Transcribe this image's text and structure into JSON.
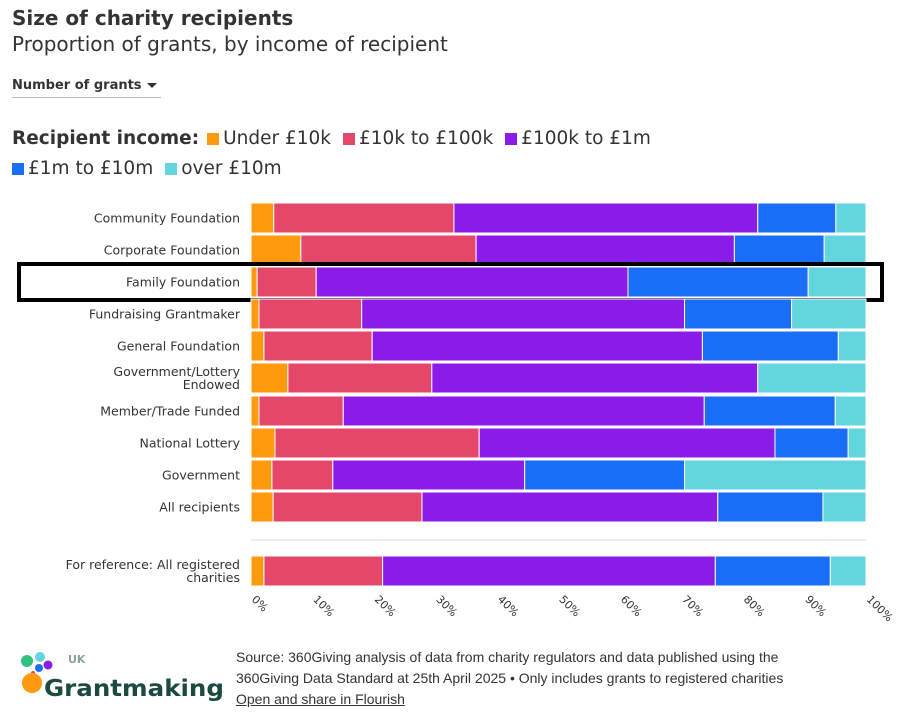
{
  "header": {
    "title": "Size of charity recipients",
    "subtitle": "Proportion of grants, by income of recipient"
  },
  "controls": {
    "dropdown_value": "Number of grants"
  },
  "legend": {
    "title": "Recipient income:"
  },
  "chart_data": {
    "type": "bar",
    "orientation": "horizontal",
    "stacked": "percent",
    "categories": [
      "Community Foundation",
      "Corporate Foundation",
      "Family Foundation",
      "Fundraising Grantmaker",
      "General Foundation",
      "Government/Lottery Endowed",
      "Member/Trade Funded",
      "National Lottery",
      "Government",
      "All recipients",
      "For reference: All registered charities"
    ],
    "highlighted": "Family Foundation",
    "series": [
      {
        "name": "Under £10k",
        "color": "#ff9a0e",
        "values": [
          3.7,
          8.1,
          1.0,
          1.3,
          2.1,
          6.0,
          1.3,
          3.9,
          3.4,
          3.6,
          2.1
        ]
      },
      {
        "name": "£10k to £100k",
        "color": "#e5476a",
        "values": [
          29.3,
          28.5,
          9.6,
          16.7,
          17.6,
          23.4,
          13.7,
          33.2,
          9.9,
          24.2,
          19.3
        ]
      },
      {
        "name": "£100k to £1m",
        "color": "#8a1be9",
        "values": [
          49.4,
          42.0,
          50.7,
          52.5,
          53.7,
          53.0,
          58.7,
          48.1,
          31.2,
          48.1,
          54.1
        ]
      },
      {
        "name": "£1m to £10m",
        "color": "#1a6ef5",
        "values": [
          12.7,
          14.6,
          29.3,
          17.4,
          22.1,
          0,
          21.3,
          11.9,
          26.0,
          17.1,
          18.7
        ]
      },
      {
        "name": "over £10m",
        "color": "#62d5de",
        "values": [
          4.9,
          6.8,
          9.4,
          12.1,
          4.5,
          17.6,
          5.0,
          2.9,
          29.5,
          7.0,
          5.8
        ]
      }
    ],
    "xlim": [
      0,
      100
    ],
    "xticks": [
      "0%",
      "10%",
      "20%",
      "30%",
      "40%",
      "50%",
      "60%",
      "70%",
      "80%",
      "90%",
      "100%"
    ],
    "grid": false,
    "legend_position": "top"
  },
  "footer": {
    "source_line1": "Source: 360Giving analysis of data from charity regulators and data published using the",
    "source_line2": "360Giving Data Standard at 25th April 2025 • Only includes grants to registered charities",
    "link": "Open and share in Flourish",
    "logo_text": "UK Grantmaking"
  }
}
